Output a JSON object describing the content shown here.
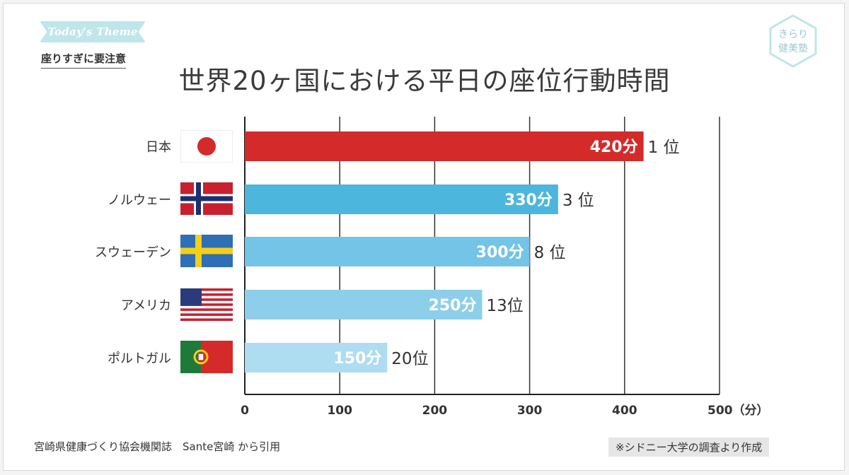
{
  "theme": {
    "badge_label": "Today's Theme",
    "text": "座りすぎに要注意"
  },
  "logo": {
    "line1": "きらり",
    "line2": "健美塾"
  },
  "chart_data": {
    "type": "bar",
    "orientation": "horizontal",
    "title": "世界20ヶ国における平日の座位行動時間",
    "categories": [
      "日本",
      "ノルウェー",
      "スウェーデン",
      "アメリカ",
      "ポルトガル"
    ],
    "values": [
      420,
      330,
      300,
      250,
      150
    ],
    "value_labels": [
      "420分",
      "330分",
      "300分",
      "250分",
      "150分"
    ],
    "rank_labels": [
      "1 位",
      "3 位",
      "8 位",
      "13位",
      "20位"
    ],
    "bar_colors": [
      "#d42a2a",
      "#4cb6dd",
      "#73c4e6",
      "#8dcfea",
      "#aedcf0"
    ],
    "xlim": [
      0,
      500
    ],
    "xticks": [
      0,
      100,
      200,
      300,
      400,
      500
    ],
    "xtick_labels": [
      "0",
      "100",
      "200",
      "300",
      "400",
      "500（分）"
    ],
    "grid": true
  },
  "flags": [
    "japan-flag-icon",
    "norway-flag-icon",
    "sweden-flag-icon",
    "usa-flag-icon",
    "portugal-flag-icon"
  ],
  "footer": {
    "source": "宮崎県健康づくり協会機関誌　Sante宮崎 から引用",
    "note": "※シドニー大学の調査より作成"
  }
}
